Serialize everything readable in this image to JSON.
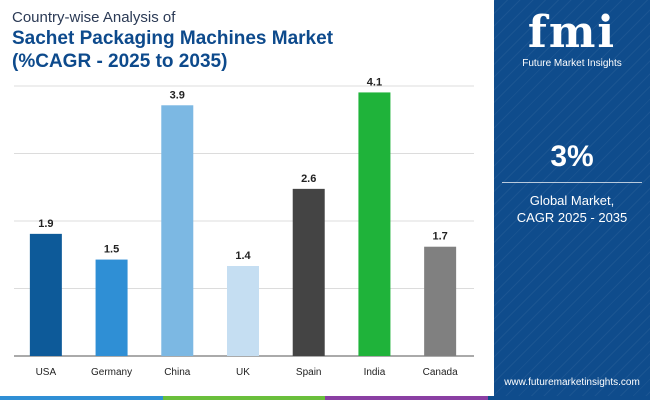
{
  "title": {
    "line1": "Country-wise Analysis of",
    "line2": "Sachet Packaging Machines Market",
    "line3": "(%CAGR - 2025 to 2035)"
  },
  "chart_data": {
    "type": "bar",
    "categories": [
      "USA",
      "Germany",
      "China",
      "UK",
      "Spain",
      "India",
      "Canada"
    ],
    "values": [
      1.9,
      1.5,
      3.9,
      1.4,
      2.6,
      4.1,
      1.7
    ],
    "colors": [
      "#0d5a99",
      "#2f8fd5",
      "#7cb8e3",
      "#c5def2",
      "#444444",
      "#1fb33a",
      "#808080"
    ],
    "ylim": [
      0,
      4.2
    ],
    "grid": true,
    "xlabel": "",
    "ylabel": ""
  },
  "side_panel": {
    "logo_text": "fmi",
    "logo_subtext": "Future Market Insights",
    "stat_value": "3%",
    "stat_label_line1": "Global Market,",
    "stat_label_line2": "CAGR 2025 - 2035",
    "website": "www.futuremarketinsights.com",
    "background_color": "#0f4c8c"
  },
  "bottom_bar_colors": [
    "#2f8fd5",
    "#6abf3c",
    "#8a3fa3",
    "#0f4c8c"
  ]
}
